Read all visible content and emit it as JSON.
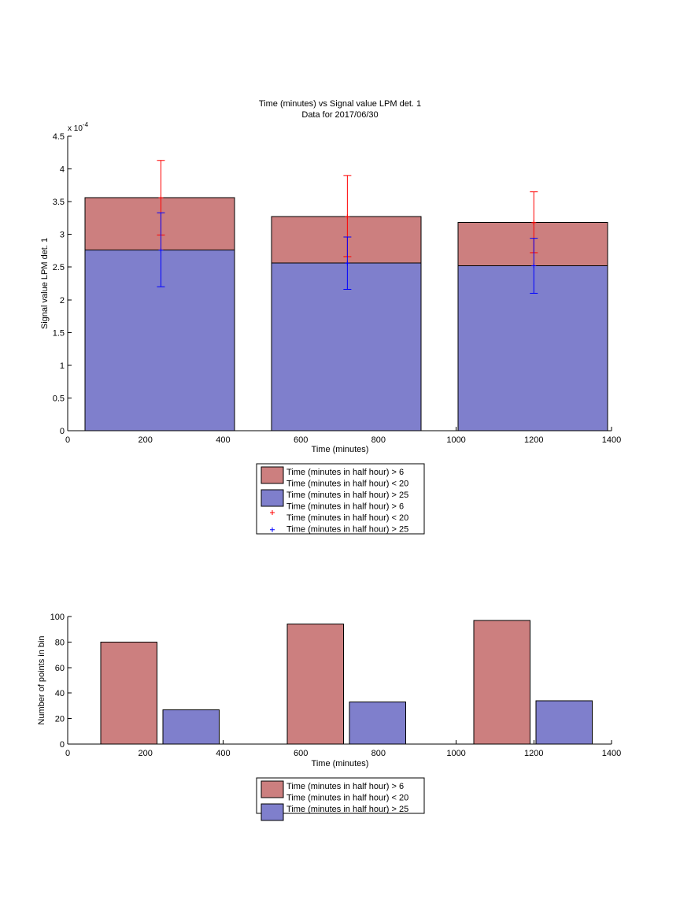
{
  "colors": {
    "red_bar": "#cc7f7f",
    "blue_bar": "#7f7fcc",
    "red_err": "#ff0000",
    "blue_err": "#0000ff"
  },
  "chart_data": [
    {
      "type": "bar",
      "title": "Time (minutes) vs Signal value LPM det. 1",
      "subtitle": "Data for 2017/06/30",
      "xlabel": "Time (minutes)",
      "ylabel": "Signal value LPM det. 1",
      "exponent_label": "x 10",
      "exponent_power": "-4",
      "xlim": [
        0,
        1400
      ],
      "ylim": [
        0,
        4.5
      ],
      "y_scale_note": "values shown in units of 10^-4",
      "xticks": [
        "0",
        "200",
        "400",
        "600",
        "800",
        "1000",
        "1200",
        "1400"
      ],
      "yticks": [
        "0",
        "0.5",
        "1",
        "1.5",
        "2",
        "2.5",
        "3",
        "3.5",
        "4",
        "4.5"
      ],
      "bins": [
        {
          "x_start": 45,
          "x_end": 430,
          "center": 240
        },
        {
          "x_start": 525,
          "x_end": 910,
          "center": 720
        },
        {
          "x_start": 1005,
          "x_end": 1390,
          "center": 1200
        }
      ],
      "series": [
        {
          "name": "Time (minutes in half hour) > 6\nTime (minutes in half hour) < 20",
          "color": "#cc7f7f",
          "values": [
            3.56,
            3.27,
            3.18
          ],
          "errors": [
            [
              2.99,
              4.13
            ],
            [
              2.66,
              3.9
            ],
            [
              2.72,
              3.65
            ]
          ],
          "error_color": "#ff0000"
        },
        {
          "name": "Time (minutes in half hour) > 25",
          "color": "#7f7fcc",
          "values": [
            2.76,
            2.56,
            2.52
          ],
          "errors": [
            [
              2.2,
              3.33
            ],
            [
              2.16,
              2.96
            ],
            [
              2.1,
              2.94
            ]
          ],
          "error_color": "#0000ff"
        }
      ],
      "legend": {
        "position": "below",
        "entries": [
          {
            "kind": "patch",
            "color": "#cc7f7f",
            "lines": [
              "Time (minutes in half hour) > 6",
              "Time (minutes in half hour) < 20"
            ]
          },
          {
            "kind": "patch",
            "color": "#7f7fcc",
            "lines": [
              "Time (minutes in half hour) > 25"
            ]
          },
          {
            "kind": "marker",
            "color": "#ff0000",
            "lines": [
              "Time (minutes in half hour) > 6",
              "Time (minutes in half hour) < 20"
            ]
          },
          {
            "kind": "marker",
            "color": "#0000ff",
            "lines": [
              "Time (minutes in half hour) > 25"
            ]
          }
        ]
      }
    },
    {
      "type": "bar",
      "xlabel": "Time (minutes)",
      "ylabel": "Number of points in bin",
      "xlim": [
        0,
        1400
      ],
      "ylim": [
        0,
        100
      ],
      "xticks": [
        "0",
        "200",
        "400",
        "600",
        "800",
        "1000",
        "1200",
        "1400"
      ],
      "yticks": [
        "0",
        "20",
        "40",
        "60",
        "80",
        "100"
      ],
      "series": [
        {
          "name": "Time (minutes in half hour) > 6\nTime (minutes in half hour) < 20",
          "color": "#cc7f7f",
          "bars": [
            {
              "x_start": 85,
              "x_end": 230,
              "value": 80
            },
            {
              "x_start": 565,
              "x_end": 710,
              "value": 94
            },
            {
              "x_start": 1045,
              "x_end": 1190,
              "value": 97
            }
          ]
        },
        {
          "name": "Time (minutes in half hour) > 25",
          "color": "#7f7fcc",
          "bars": [
            {
              "x_start": 245,
              "x_end": 390,
              "value": 27
            },
            {
              "x_start": 725,
              "x_end": 870,
              "value": 33
            },
            {
              "x_start": 1205,
              "x_end": 1350,
              "value": 34
            }
          ]
        }
      ],
      "legend": {
        "position": "below",
        "entries": [
          {
            "kind": "patch",
            "color": "#cc7f7f",
            "lines": [
              "Time (minutes in half hour) > 6",
              "Time (minutes in half hour) < 20"
            ]
          },
          {
            "kind": "patch",
            "color": "#7f7fcc",
            "lines": [
              "Time (minutes in half hour) > 25"
            ]
          }
        ]
      }
    }
  ]
}
